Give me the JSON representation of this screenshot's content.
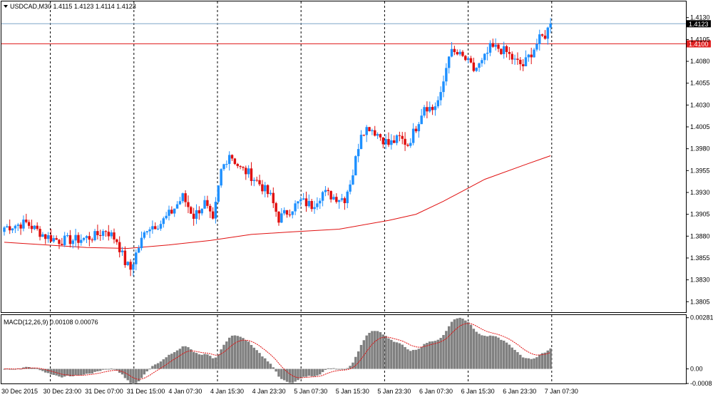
{
  "chart_data": [
    {
      "type": "candlestick",
      "symbol_info": "USDCAD,M30  1.4115 1.4123 1.4114 1.4123",
      "series": [
        {
          "name": "",
          "kind": "candles"
        },
        {
          "name": "",
          "kind": "moving-average"
        }
      ],
      "ylim": [
        1.3793,
        1.4142
      ],
      "y_ticks": [
        "1.4130",
        "1.4105",
        "1.4080",
        "1.4055",
        "1.4030",
        "1.4005",
        "1.3980",
        "1.3955",
        "1.3930",
        "1.3905",
        "1.3880",
        "1.3855",
        "1.3830",
        "1.3805"
      ],
      "x_ticks": [
        "30 Dec 2015",
        "30 Dec 23:00",
        "31 Dec 07:00",
        "31 Dec 15:00",
        "4 Jan 07:30",
        "4 Jan 15:30",
        "4 Jan 23:30",
        "5 Jan 07:30",
        "5 Jan 15:30",
        "5 Jan 23:30",
        "6 Jan 07:30",
        "6 Jan 15:30",
        "6 Jan 23:30",
        "7 Jan 07:30"
      ],
      "price_lines": [
        {
          "value": 1.4123,
          "label": "1.4123",
          "color": "#7fa6c8",
          "label_bg": "#000000",
          "label_color": "#ffffff"
        },
        {
          "value": 1.41,
          "label": "1.4100",
          "color": "#e02020",
          "label_bg": "#e02020",
          "label_color": "#ffffff"
        }
      ],
      "colors": {
        "bull": "#1e90ff",
        "bear": "#e01010",
        "ma": "#e01010"
      },
      "keypoints": [
        [
          0,
          1.389
        ],
        [
          8,
          1.3895
        ],
        [
          15,
          1.388
        ],
        [
          20,
          1.3875
        ],
        [
          27,
          1.3876
        ],
        [
          33,
          1.388
        ],
        [
          37,
          1.3887
        ],
        [
          41,
          1.3875
        ],
        [
          44,
          1.385
        ],
        [
          46,
          1.3842
        ],
        [
          48,
          1.386
        ],
        [
          52,
          1.389
        ],
        [
          57,
          1.3895
        ],
        [
          61,
          1.3908
        ],
        [
          65,
          1.3925
        ],
        [
          69,
          1.3903
        ],
        [
          73,
          1.3918
        ],
        [
          76,
          1.3895
        ],
        [
          79,
          1.3955
        ],
        [
          82,
          1.3975
        ],
        [
          86,
          1.3957
        ],
        [
          89,
          1.3952
        ],
        [
          93,
          1.394
        ],
        [
          97,
          1.3925
        ],
        [
          100,
          1.39
        ],
        [
          104,
          1.391
        ],
        [
          108,
          1.392
        ],
        [
          112,
          1.3915
        ],
        [
          116,
          1.393
        ],
        [
          120,
          1.3925
        ],
        [
          124,
          1.3923
        ],
        [
          127,
          1.3952
        ],
        [
          130,
          1.4
        ],
        [
          133,
          1.4005
        ],
        [
          136,
          1.3997
        ],
        [
          140,
          1.3985
        ],
        [
          144,
          1.3992
        ],
        [
          147,
          1.3985
        ],
        [
          150,
          1.4005
        ],
        [
          153,
          1.403
        ],
        [
          156,
          1.4025
        ],
        [
          159,
          1.404
        ],
        [
          162,
          1.409
        ],
        [
          165,
          1.4088
        ],
        [
          168,
          1.4082
        ],
        [
          171,
          1.407
        ],
        [
          174,
          1.4078
        ],
        [
          177,
          1.4095
        ],
        [
          180,
          1.4095
        ],
        [
          183,
          1.409
        ],
        [
          186,
          1.408
        ],
        [
          189,
          1.4075
        ],
        [
          192,
          1.409
        ],
        [
          195,
          1.4105
        ],
        [
          197,
          1.411
        ],
        [
          199,
          1.4123
        ]
      ],
      "ma_points": [
        [
          0,
          1.3873
        ],
        [
          30,
          1.3867
        ],
        [
          45,
          1.3866
        ],
        [
          60,
          1.387
        ],
        [
          75,
          1.3875
        ],
        [
          90,
          1.3882
        ],
        [
          105,
          1.3885
        ],
        [
          122,
          1.3888
        ],
        [
          140,
          1.3898
        ],
        [
          150,
          1.3905
        ],
        [
          160,
          1.392
        ],
        [
          175,
          1.3945
        ],
        [
          190,
          1.3962
        ],
        [
          199,
          1.3972
        ]
      ]
    },
    {
      "type": "histogram",
      "indicator_label": "MACD(12,26,9) 0.00108 0.00076",
      "series": [
        {
          "name": "",
          "kind": "histogram"
        },
        {
          "name": "",
          "kind": "signal-line"
        }
      ],
      "ylim": [
        -0.0008,
        0.0028
      ],
      "y_ticks": [
        "0.00281",
        "0.00",
        "-0.0008"
      ],
      "colors": {
        "bars": "#808080",
        "signal": "#e01010"
      }
    }
  ]
}
